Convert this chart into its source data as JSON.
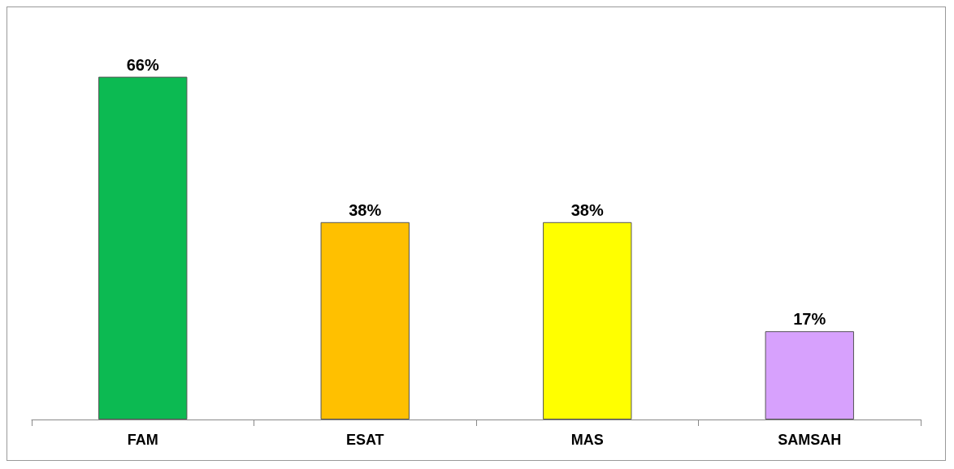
{
  "chart_data": {
    "type": "bar",
    "categories": [
      "FAM",
      "ESAT",
      "MAS",
      "SAMSAH"
    ],
    "values": [
      66,
      38,
      38,
      17
    ],
    "colors": [
      "#0cba52",
      "#ffc000",
      "#ffff00",
      "#d7a1fd"
    ],
    "value_labels": [
      "66%",
      "38%",
      "38%",
      "17%"
    ]
  }
}
